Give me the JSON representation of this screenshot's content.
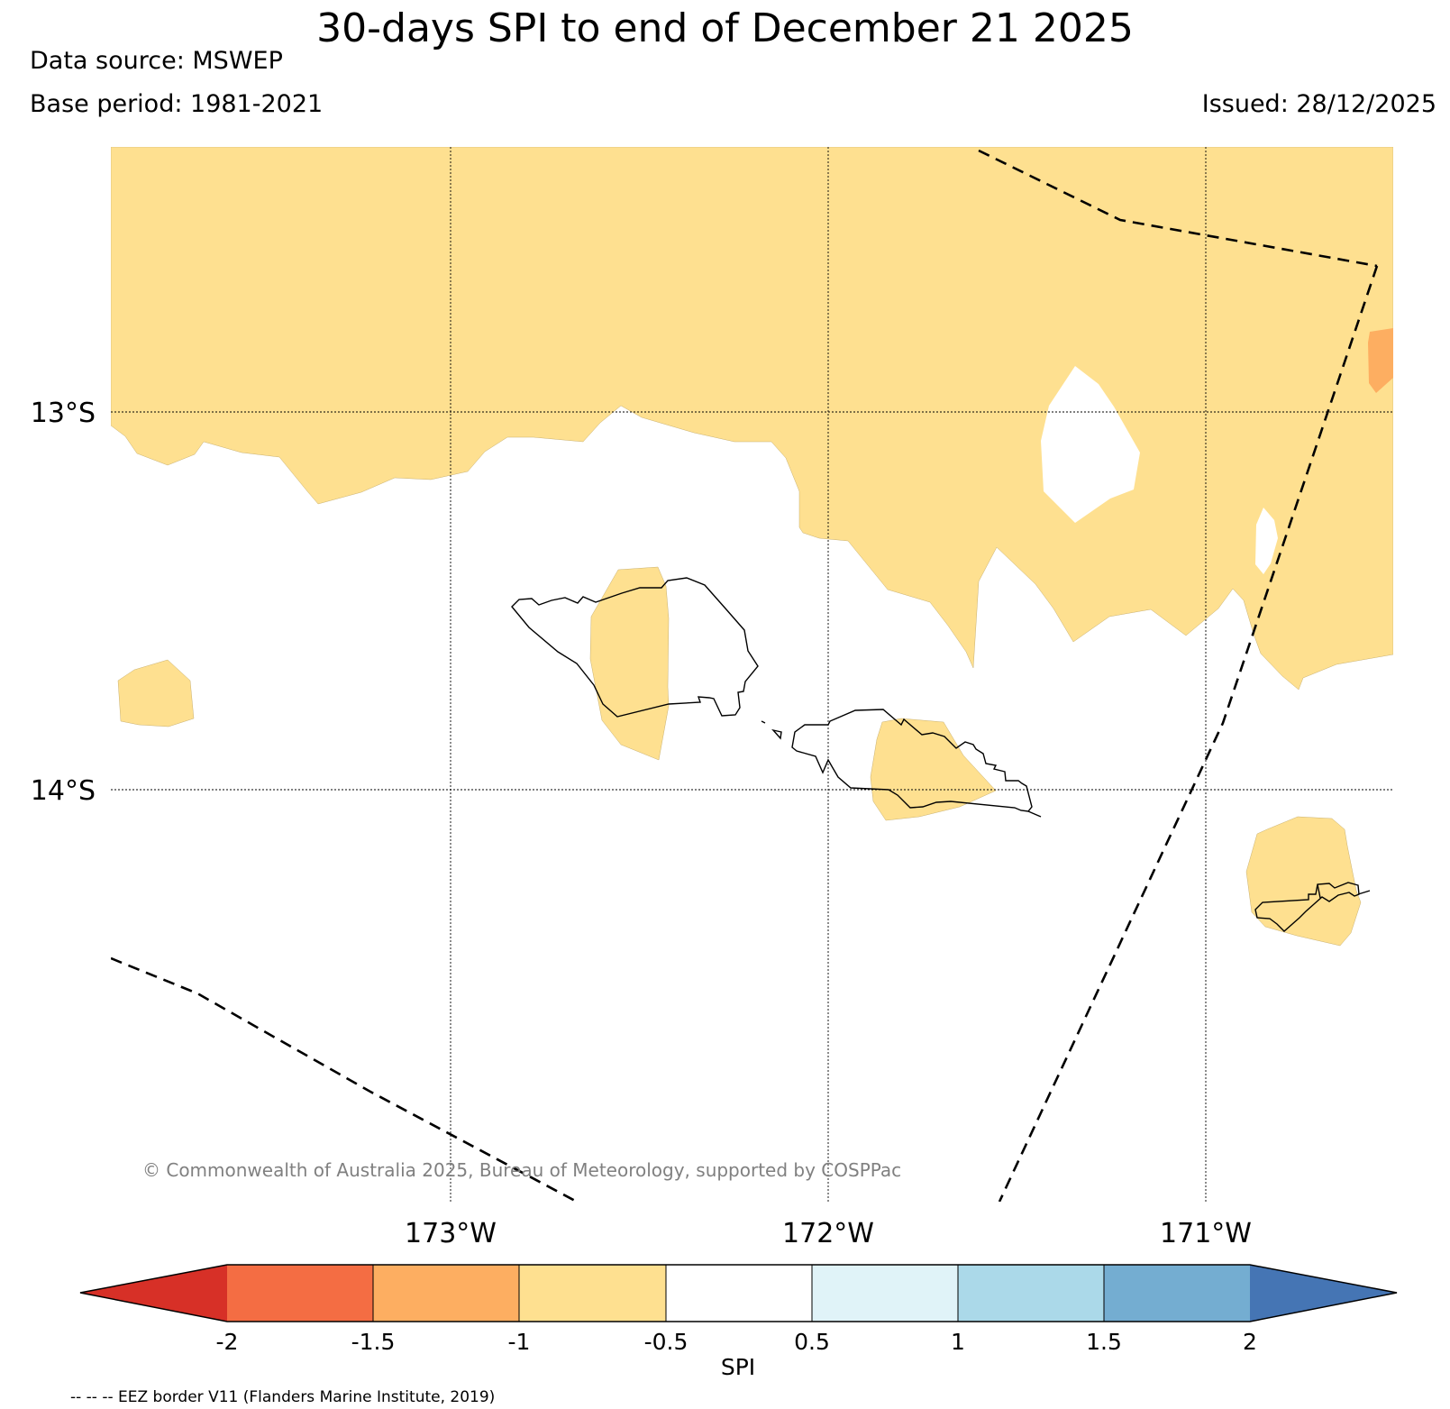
{
  "header": {
    "title": "30-days SPI to end of December 21 2025",
    "data_source": "Data source: MSWEP",
    "base_period": "Base period: 1981-2021",
    "issued": "Issued: 28/12/2025"
  },
  "map": {
    "lat_labels": [
      "13°S",
      "14°S"
    ],
    "lon_labels": [
      "173°W",
      "172°W",
      "171°W"
    ],
    "copyright": "© Commonwealth of Australia 2025, Bureau of Meteorology, supported by COSPPac",
    "legend_note": "-- -- -- EEZ border V11 (Flanders Marine Institute, 2019)",
    "colors": {
      "spi_-1_to_-0.5": "#fee090",
      "spi_-1.5_to_-1": "#fdae61",
      "coastline": "#000000",
      "eez_border": "#000000"
    }
  },
  "colorbar": {
    "label": "SPI",
    "ticks": [
      "-2",
      "-1.5",
      "-1",
      "-0.5",
      "0.5",
      "1",
      "1.5",
      "2"
    ],
    "colors": [
      "#d73027",
      "#f46d43",
      "#fdae61",
      "#fee090",
      "#ffffff",
      "#e0f3f8",
      "#abd9e9",
      "#74add1",
      "#4575b4"
    ]
  }
}
